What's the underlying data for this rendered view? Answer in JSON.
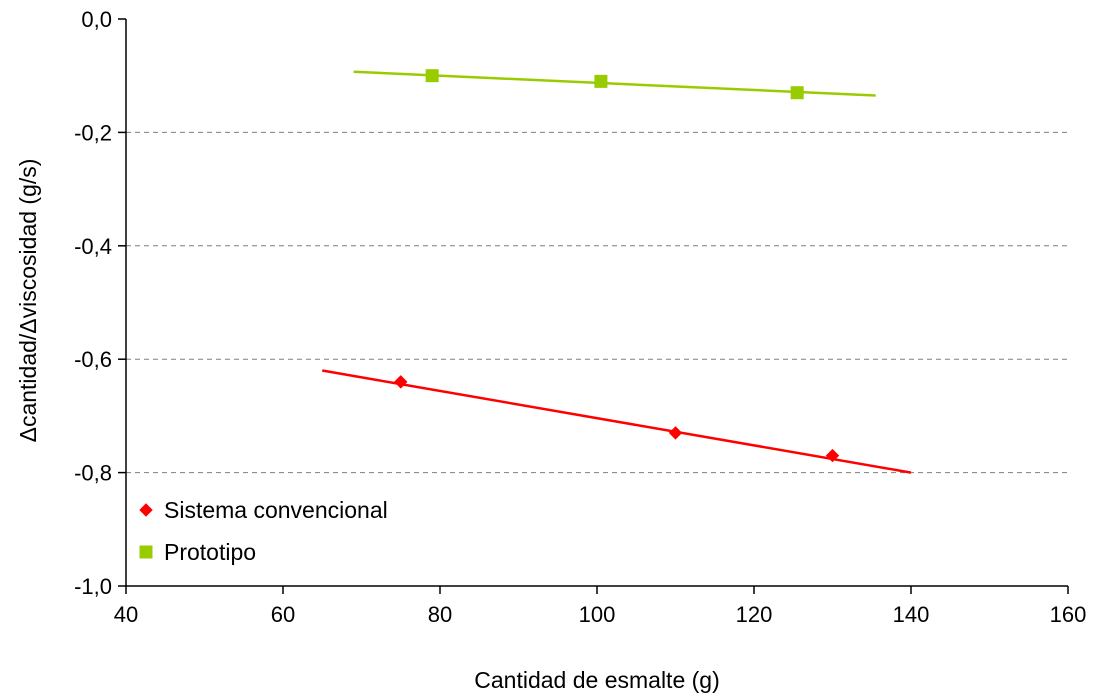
{
  "chart_data": {
    "type": "scatter",
    "title": "",
    "xlabel": "Cantidad de esmalte (g)",
    "ylabel": "Δcantidad/Δviscosidad (g/s)",
    "xlim": [
      40,
      160
    ],
    "ylim": [
      -1.0,
      0.0
    ],
    "x_ticks": [
      40,
      60,
      80,
      100,
      120,
      140,
      160
    ],
    "y_ticks": [
      0.0,
      -0.2,
      -0.4,
      -0.6,
      -0.8,
      -1.0
    ],
    "x_tick_labels": [
      "40",
      "60",
      "80",
      "100",
      "120",
      "140",
      "160"
    ],
    "y_tick_labels": [
      "0,0",
      "-0,2",
      "-0,4",
      "-0,6",
      "-0,8",
      "-1,0"
    ],
    "grid": "horizontal dashed",
    "legend_position": "bottom-left",
    "series": [
      {
        "name": "Sistema convencional",
        "marker": "diamond",
        "color": "#ff0000",
        "x": [
          75,
          110,
          130
        ],
        "y": [
          -0.64,
          -0.73,
          -0.77
        ],
        "trendline": {
          "x": [
            65,
            140
          ],
          "y": [
            -0.62,
            -0.8
          ]
        }
      },
      {
        "name": "Prototipo",
        "marker": "square",
        "color": "#99cc00",
        "x": [
          79,
          100.5,
          125.5
        ],
        "y": [
          -0.1,
          -0.11,
          -0.13
        ],
        "trendline": {
          "x": [
            69,
            135.5
          ],
          "y": [
            -0.093,
            -0.135
          ]
        }
      }
    ]
  }
}
